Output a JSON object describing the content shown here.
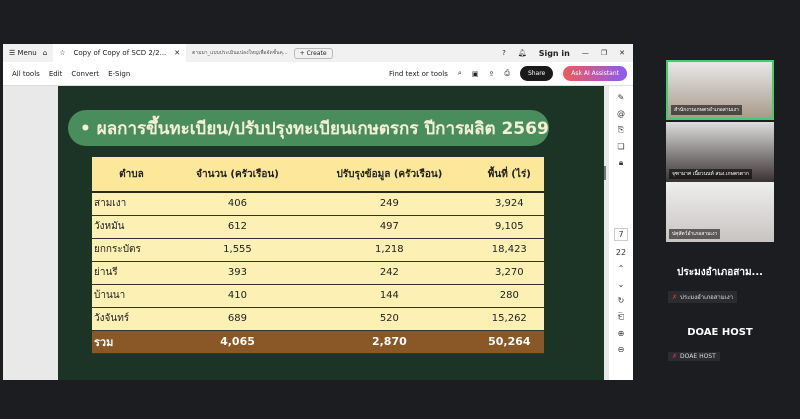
{
  "tabbar": {
    "menu": "Menu",
    "tab1": "Copy of Copy of SCD 2/2...",
    "tab2": "ตามมา_แบบประเมินแปลงใหญ่เพื่อจัดชั้นคุ...",
    "create": "+ Create",
    "signin": "Sign in"
  },
  "toolbar": {
    "all_tools": "All tools",
    "edit": "Edit",
    "convert": "Convert",
    "esign": "E-Sign",
    "find": "Find text or tools",
    "share": "Share",
    "ai": "Ask AI Assistant"
  },
  "slide": {
    "title": "• ผลการขึ้นทะเบียน/ปรับปรุงทะเบียนเกษตรกร ปีการผลิต 2569",
    "headers": [
      "ตำบล",
      "จำนวน (ครัวเรือน)",
      "ปรับรุงข้อมูล (ครัวเรือน)",
      "พื้นที่ (ไร่)"
    ],
    "rows": [
      [
        "สามเงา",
        "406",
        "249",
        "3,924"
      ],
      [
        "วังหมัน",
        "612",
        "497",
        "9,105"
      ],
      [
        "ยกกระบัตร",
        "1,555",
        "1,218",
        "18,423"
      ],
      [
        "ย่านรี",
        "393",
        "242",
        "3,270"
      ],
      [
        "บ้านนา",
        "410",
        "144",
        "280"
      ],
      [
        "วังจันทร์",
        "689",
        "520",
        "15,262"
      ]
    ],
    "total": [
      "รวม",
      "4,065",
      "2,870",
      "50,264"
    ]
  },
  "rail": {
    "page": "7",
    "total_pages": "22"
  },
  "participants": {
    "p1": "สำนักงานเกษตรอำเภอสามเงา",
    "p2": "จุฑามาศ เนี้ยวนนท์ สนง.เกษตรตาก",
    "p3": "ปศุสัตว์อำเภอสามเงา",
    "p4_name": "ประมงอำเภอสาม...",
    "p4_tag": "ประมงอำเภอสามเงา",
    "p5_name": "DOAE HOST",
    "p5_tag": "DOAE HOST"
  }
}
